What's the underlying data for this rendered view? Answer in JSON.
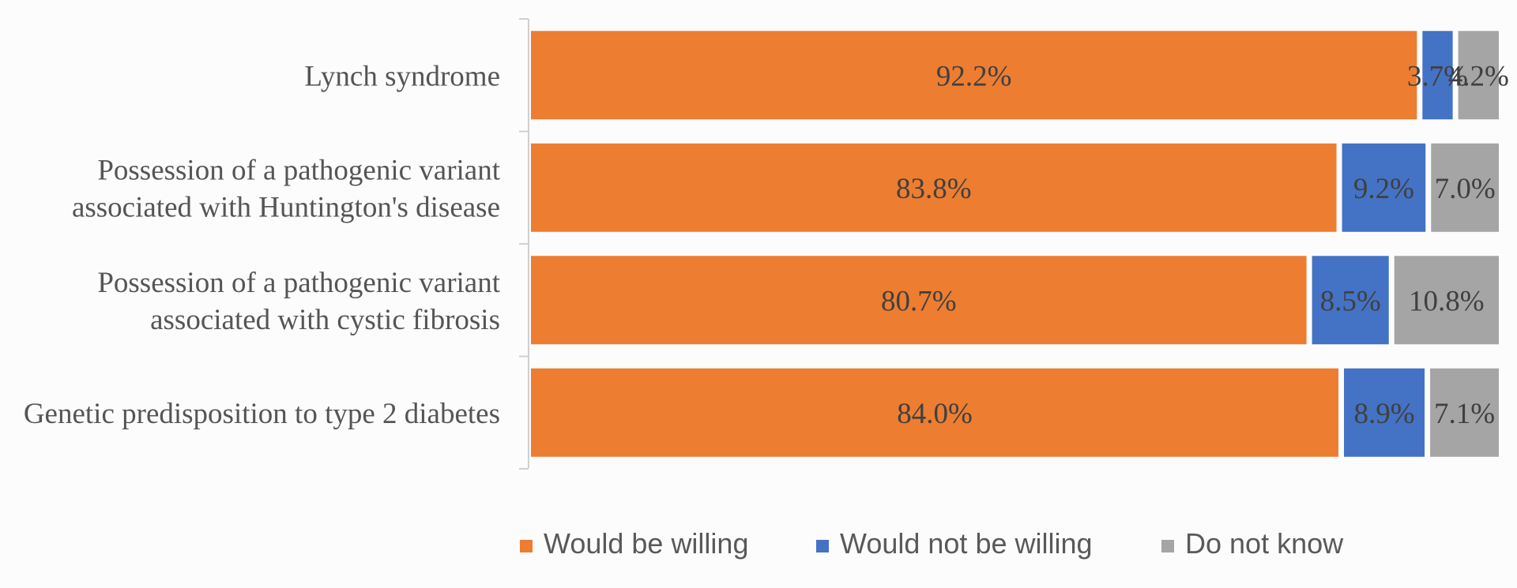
{
  "chart_data": {
    "type": "bar",
    "orientation": "horizontal",
    "stacked": "100%",
    "categories": [
      "Lynch syndrome",
      "Possession of a pathogenic variant associated with Huntington's disease",
      "Possession of a pathogenic variant associated with cystic fibrosis",
      "Genetic predisposition to type 2 diabetes"
    ],
    "category_lines": [
      [
        "Lynch syndrome"
      ],
      [
        "Possession of a pathogenic variant",
        "associated with Huntington's disease"
      ],
      [
        "Possession of a pathogenic variant",
        "associated with cystic fibrosis"
      ],
      [
        "Genetic predisposition to type 2 diabetes"
      ]
    ],
    "series": [
      {
        "name": "Would be willing",
        "color": "#ED7D31",
        "values": [
          92.2,
          83.8,
          80.7,
          84.0
        ],
        "labels": [
          "92.2%",
          "83.8%",
          "80.7%",
          "84.0%"
        ]
      },
      {
        "name": "Would not be willing",
        "color": "#4472C4",
        "values": [
          3.7,
          9.2,
          8.5,
          8.9
        ],
        "labels": [
          "3.7%",
          "9.2%",
          "8.5%",
          "8.9%"
        ]
      },
      {
        "name": "Do not know",
        "color": "#A5A5A5",
        "values": [
          4.2,
          7.0,
          10.8,
          7.1
        ],
        "labels": [
          "4.2%",
          "7.0%",
          "10.8%",
          "7.1%"
        ]
      }
    ],
    "xlim": [
      0,
      100
    ],
    "grid": false,
    "legend_position": "bottom"
  }
}
